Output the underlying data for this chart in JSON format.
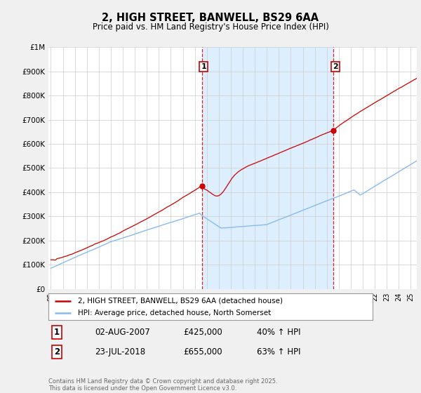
{
  "title": "2, HIGH STREET, BANWELL, BS29 6AA",
  "subtitle": "Price paid vs. HM Land Registry's House Price Index (HPI)",
  "red_label": "2, HIGH STREET, BANWELL, BS29 6AA (detached house)",
  "blue_label": "HPI: Average price, detached house, North Somerset",
  "annotation1_text": "1",
  "annotation2_text": "2",
  "annotation1_date": "02-AUG-2007",
  "annotation1_price": "£425,000",
  "annotation1_hpi": "40% ↑ HPI",
  "annotation2_date": "23-JUL-2018",
  "annotation2_price": "£655,000",
  "annotation2_hpi": "63% ↑ HPI",
  "footnote": "Contains HM Land Registry data © Crown copyright and database right 2025.\nThis data is licensed under the Open Government Licence v3.0.",
  "ylim": [
    0,
    1000000
  ],
  "yticks": [
    0,
    100000,
    200000,
    300000,
    400000,
    500000,
    600000,
    700000,
    800000,
    900000,
    1000000
  ],
  "ytick_labels": [
    "£0",
    "£100K",
    "£200K",
    "£300K",
    "£400K",
    "£500K",
    "£600K",
    "£700K",
    "£800K",
    "£900K",
    "£1M"
  ],
  "background_color": "#f0f0f0",
  "plot_bg_color": "#ffffff",
  "red_color": "#cc0000",
  "blue_color": "#88bbee",
  "blue_fill_color": "#ddeeff",
  "vline_color": "#cc0000",
  "grid_color": "#cccccc",
  "anno1_x": 2007.58,
  "anno2_x": 2018.55,
  "anno1_y": 425000,
  "anno2_y": 655000,
  "xmin": 1995,
  "xmax": 2025.5,
  "xtick_step": 1
}
